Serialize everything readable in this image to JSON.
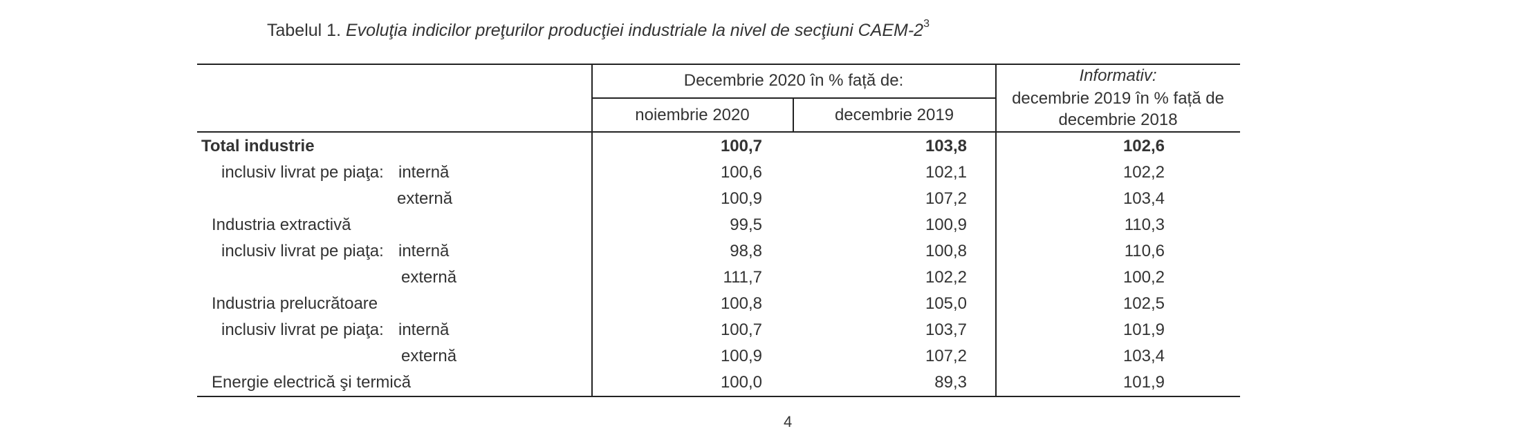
{
  "caption": {
    "prefix": "Tabelul 1. ",
    "title": "Evoluţia indicilor preţurilor producţiei industriale la nivel de secţiuni CAEM-2",
    "footnote": "3"
  },
  "header": {
    "group": "Decembrie 2020 în % față de:",
    "col1": "noiembrie 2020",
    "col2": "decembrie 2019",
    "info_title": "Informativ:",
    "info_line1": "decembrie 2019 în % față de",
    "info_line2": "decembrie 2018"
  },
  "rows": [
    {
      "label": "Total industrie",
      "sub": "",
      "v1": "100,7",
      "v2": "103,8",
      "v3": "102,6"
    },
    {
      "label": "inclusiv livrat pe piaţa:",
      "sub": "internă",
      "v1": "100,6",
      "v2": "102,1",
      "v3": "102,2"
    },
    {
      "label": "",
      "sub": "externă",
      "v1": "100,9",
      "v2": "107,2",
      "v3": "103,4"
    },
    {
      "label": "Industria extractivă",
      "sub": "",
      "v1": "99,5",
      "v2": "100,9",
      "v3": "110,3"
    },
    {
      "label": "inclusiv livrat pe piaţa:",
      "sub": "internă",
      "v1": "98,8",
      "v2": "100,8",
      "v3": "110,6"
    },
    {
      "label": "",
      "sub": "externă",
      "v1": "111,7",
      "v2": "102,2",
      "v3": "100,2"
    },
    {
      "label": "Industria prelucrătoare",
      "sub": "",
      "v1": "100,8",
      "v2": "105,0",
      "v3": "102,5"
    },
    {
      "label": "inclusiv livrat pe piaţa:",
      "sub": "internă",
      "v1": "100,7",
      "v2": "103,7",
      "v3": "101,9"
    },
    {
      "label": "",
      "sub": "externă",
      "v1": "100,9",
      "v2": "107,2",
      "v3": "103,4"
    },
    {
      "label": "Energie electrică şi termică",
      "sub": "",
      "v1": "100,0",
      "v2": "89,3",
      "v3": "101,9"
    }
  ],
  "page_number": "4"
}
